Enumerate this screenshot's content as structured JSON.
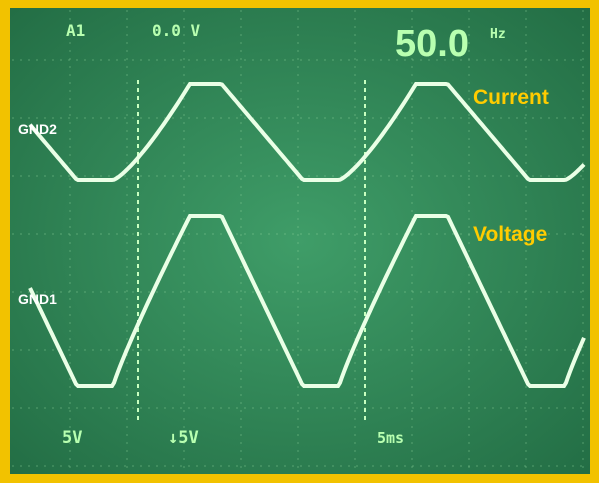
{
  "header": {
    "channel": "A1",
    "offset": "0.0 V",
    "frequency": "50.0",
    "unit": "Hz"
  },
  "traces": [
    {
      "label": "Current",
      "ground": "GND2"
    },
    {
      "label": "Voltage",
      "ground": "GND1"
    }
  ],
  "footer": {
    "ch1_scale": "5V",
    "ch2_scale": "↓5V",
    "timebase": "5ms"
  }
}
